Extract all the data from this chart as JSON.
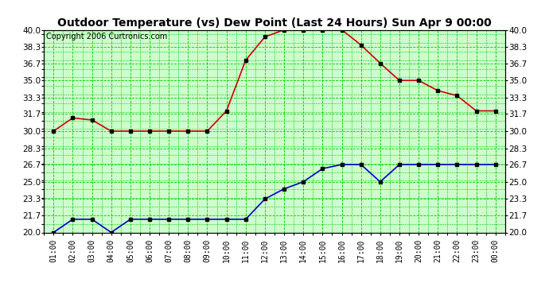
{
  "title": "Outdoor Temperature (vs) Dew Point (Last 24 Hours) Sun Apr 9 00:00",
  "copyright": "Copyright 2006 Curtronics.com",
  "hours": [
    "01:00",
    "02:00",
    "03:00",
    "04:00",
    "05:00",
    "06:00",
    "07:00",
    "08:00",
    "09:00",
    "10:00",
    "11:00",
    "12:00",
    "13:00",
    "14:00",
    "15:00",
    "16:00",
    "17:00",
    "18:00",
    "19:00",
    "20:00",
    "21:00",
    "22:00",
    "23:00",
    "00:00"
  ],
  "temp": [
    30.0,
    31.3,
    31.1,
    30.0,
    30.0,
    30.0,
    30.0,
    30.0,
    30.0,
    32.0,
    37.0,
    39.3,
    40.0,
    40.0,
    40.0,
    40.0,
    38.5,
    36.7,
    35.0,
    35.0,
    34.0,
    33.5,
    32.0,
    32.0
  ],
  "dew": [
    20.0,
    21.3,
    21.3,
    20.0,
    21.3,
    21.3,
    21.3,
    21.3,
    21.3,
    21.3,
    21.3,
    23.3,
    24.3,
    25.0,
    26.3,
    26.7,
    26.7,
    25.0,
    26.7,
    26.7,
    26.7,
    26.7,
    26.7,
    26.7
  ],
  "temp_color": "#cc0000",
  "dew_color": "#0000cc",
  "bg_color": "#ccffcc",
  "grid_color": "#00cc00",
  "ymin": 20.0,
  "ymax": 40.0,
  "yticks": [
    20.0,
    21.7,
    23.3,
    25.0,
    26.7,
    28.3,
    30.0,
    31.7,
    33.3,
    35.0,
    36.7,
    38.3,
    40.0
  ],
  "title_fontsize": 10,
  "copyright_fontsize": 7,
  "marker": "s",
  "marker_size": 3,
  "linewidth": 1.2
}
